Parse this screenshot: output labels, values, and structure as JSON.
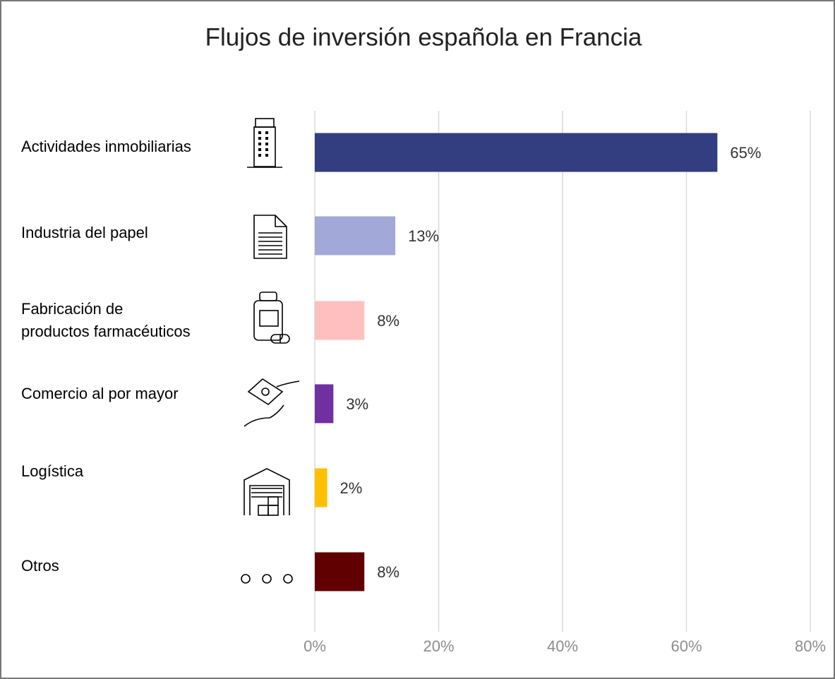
{
  "chart_data": {
    "type": "barh",
    "title": "Flujos de inversión española en Francia",
    "categories": [
      "Actividades inmobiliarias",
      "Industria del papel",
      "Fabricación de\nproductos farmacéuticos",
      "Comercio al por mayor",
      "Logística",
      "Otros"
    ],
    "values": [
      65,
      13,
      8,
      3,
      2,
      8
    ],
    "value_labels": [
      "65%",
      "13%",
      "8%",
      "3%",
      "2%",
      "8%"
    ],
    "colors": [
      "#323e80",
      "#a2a9d8",
      "#ffbfbf",
      "#7030a0",
      "#ffc000",
      "#600000"
    ],
    "xlim": [
      0,
      80
    ],
    "xticks": [
      {
        "value": 0,
        "label": "0%"
      },
      {
        "value": 20,
        "label": "20%"
      },
      {
        "value": 40,
        "label": "40%"
      },
      {
        "value": 60,
        "label": "60%"
      },
      {
        "value": 80,
        "label": "80%"
      }
    ],
    "grid": true
  }
}
